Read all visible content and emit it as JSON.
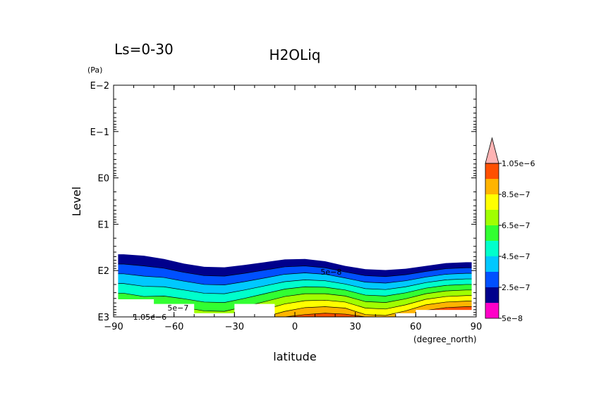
{
  "chart_data": {
    "type": "contour",
    "title": "H2OLiq",
    "subtitle": "Ls=0-30",
    "xlabel": "latitude",
    "xunit": "(degree_north)",
    "ylabel": "Level",
    "yunit": "(Pa)",
    "yscale": "log",
    "y_reversed": true,
    "xlim": [
      -90,
      90
    ],
    "ylim_exponent": [
      3,
      -2
    ],
    "x_ticks": [
      {
        "value": -90,
        "label": "−90"
      },
      {
        "value": -60,
        "label": "−60"
      },
      {
        "value": -30,
        "label": "−30"
      },
      {
        "value": 0,
        "label": "0"
      },
      {
        "value": 30,
        "label": "30"
      },
      {
        "value": 60,
        "label": "60"
      },
      {
        "value": 90,
        "label": "90"
      }
    ],
    "y_ticks": [
      {
        "exp": -2,
        "label": "E−2"
      },
      {
        "exp": -1,
        "label": "E−1"
      },
      {
        "exp": 0,
        "label": "E0"
      },
      {
        "exp": 1,
        "label": "E1"
      },
      {
        "exp": 2,
        "label": "E2"
      },
      {
        "exp": 3,
        "label": "E3"
      }
    ],
    "levels": [
      5e-08,
      1.5e-07,
      2.5e-07,
      3.5e-07,
      4.5e-07,
      5.5e-07,
      6.5e-07,
      7.5e-07,
      8.5e-07,
      9.5e-07,
      1.05e-06
    ],
    "colors": [
      "#ff00c8",
      "#00008c",
      "#0050ff",
      "#00c8ff",
      "#00ffcc",
      "#32ff32",
      "#a0ff00",
      "#ffff00",
      "#ffb400",
      "#ff5000",
      "#ff6e6e",
      "#ffb4b4"
    ],
    "colorbar_labels": [
      {
        "level_index": 0,
        "label": "5e−8"
      },
      {
        "level_index": 2,
        "label": "2.5e−7"
      },
      {
        "level_index": 4,
        "label": "4.5e−7"
      },
      {
        "level_index": 6,
        "label": "6.5e−7"
      },
      {
        "level_index": 8,
        "label": "8.5e−7"
      },
      {
        "level_index": 10,
        "label": "1.05e−6"
      }
    ],
    "contour_labels": [
      "1.05e−6",
      "5e−7",
      "5e−8"
    ],
    "field": {
      "lat": [
        -85,
        -75,
        -65,
        -55,
        -45,
        -35,
        -25,
        -15,
        -5,
        5,
        15,
        25,
        35,
        45,
        55,
        65,
        75,
        85
      ],
      "top_exp": [
        1.65,
        1.68,
        1.75,
        1.85,
        1.92,
        1.93,
        1.88,
        1.82,
        1.76,
        1.75,
        1.8,
        1.9,
        1.97,
        1.99,
        1.96,
        1.9,
        1.84,
        1.82
      ],
      "band_exp": [
        0.21,
        0.22,
        0.2,
        0.19,
        0.19,
        0.19,
        0.18,
        0.17,
        0.16,
        0.15,
        0.14,
        0.13,
        0.14,
        0.14,
        0.13,
        0.12,
        0.12,
        0.12
      ],
      "ground_exp": [
        2.62,
        2.62,
        2.72,
        2.72,
        2.92,
        2.92,
        2.72,
        2.72,
        3.0,
        3.0,
        3.0,
        3.0,
        3.0,
        3.0,
        2.92,
        2.85,
        2.85,
        2.85
      ]
    }
  }
}
